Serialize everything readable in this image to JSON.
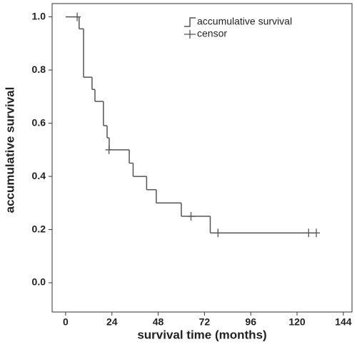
{
  "chart_data": {
    "type": "step",
    "xlabel": "survival time (months)",
    "ylabel": "accumulative survival",
    "xlim": [
      -7,
      148.5
    ],
    "xticks": [
      0,
      24,
      48,
      72,
      96,
      120,
      144
    ],
    "ylim": [
      -0.11,
      1.05
    ],
    "yticks": [
      {
        "value": 0,
        "label": "0.0"
      },
      {
        "value": 0.2,
        "label": "0.2"
      },
      {
        "value": 0.4,
        "label": "0.4"
      },
      {
        "value": 0.6,
        "label": "0.6"
      },
      {
        "value": 0.8,
        "label": "0.8"
      },
      {
        "value": 1,
        "label": "1.0"
      }
    ],
    "legend": "upper right",
    "series": [
      {
        "name": "accumulative survival",
        "color": "#555555",
        "x": [
          0,
          7,
          9.3,
          13.7,
          15.2,
          19.6,
          21.5,
          22.6,
          33,
          35,
          42,
          47,
          60,
          75,
          130
        ],
        "values": [
          1,
          0.955,
          0.773,
          0.727,
          0.682,
          0.591,
          0.545,
          0.5,
          0.45,
          0.4,
          0.35,
          0.3,
          0.25,
          0.1875,
          0.1875
        ]
      },
      {
        "name": "censor",
        "color": "#555555",
        "x": [
          6,
          22.5,
          65,
          79,
          126,
          130
        ],
        "values": [
          1,
          0.5,
          0.25,
          0.1875,
          0.1875,
          0.1875
        ]
      }
    ]
  }
}
